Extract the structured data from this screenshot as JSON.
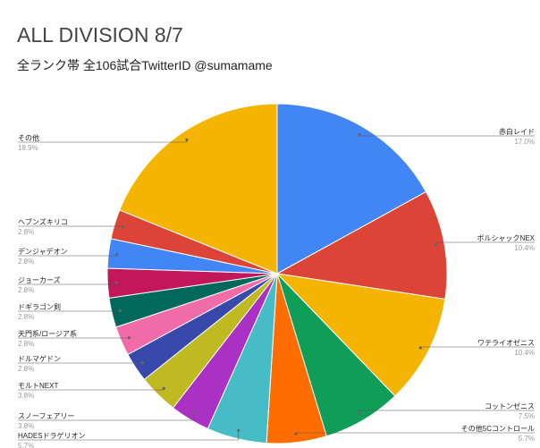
{
  "chart_data": {
    "type": "pie",
    "title": "ALL DIVISION 8/7",
    "subtitle": "全ランク帯 全106試合TwitterID @sumamame",
    "slices": [
      {
        "name": "赤白レイド",
        "value": 17.0,
        "pct_label": "17.0%",
        "color": "#4285f4"
      },
      {
        "name": "ボルシャックNEX",
        "value": 10.4,
        "pct_label": "10.4%",
        "color": "#db4437"
      },
      {
        "name": "ワテライオゼニス",
        "value": 10.4,
        "pct_label": "10.4%",
        "color": "#f4b400"
      },
      {
        "name": "コットンゼニス",
        "value": 7.5,
        "pct_label": "7.5%",
        "color": "#0f9d58"
      },
      {
        "name": "その他5Cコントロール",
        "value": 5.7,
        "pct_label": "5.7%",
        "color": "#ff6d01"
      },
      {
        "name": "HADESドラゲリオン",
        "value": 5.7,
        "pct_label": "5.7%",
        "color": "#46bdc6"
      },
      {
        "name": "スノーフェアリー",
        "value": 3.8,
        "pct_label": "3.8%",
        "color": "#ab30c4"
      },
      {
        "name": "モルトNEXT",
        "value": 3.8,
        "pct_label": "3.8%",
        "color": "#c0ba22"
      },
      {
        "name": "ドルマゲドン",
        "value": 2.8,
        "pct_label": "2.8%",
        "color": "#3949ab"
      },
      {
        "name": "天門系/ロージア系",
        "value": 2.8,
        "pct_label": "2.8%",
        "color": "#f06ba8"
      },
      {
        "name": "ドギラゴン剣",
        "value": 2.8,
        "pct_label": "2.8%",
        "color": "#00695c"
      },
      {
        "name": "ジョーカーズ",
        "value": 2.8,
        "pct_label": "2.8%",
        "color": "#c2185b"
      },
      {
        "name": "デンジャデオン",
        "value": 2.8,
        "pct_label": "2.8%",
        "color": "#4285f4"
      },
      {
        "name": "ヘブンズキリコ",
        "value": 2.8,
        "pct_label": "2.8%",
        "color": "#db4437"
      },
      {
        "name": "その他",
        "value": 18.9,
        "pct_label": "18.9%",
        "color": "#f4b400"
      }
    ],
    "legend": "none (labels beside slices)",
    "grid": false
  }
}
